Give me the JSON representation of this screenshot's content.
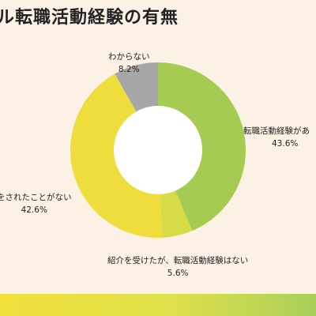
{
  "title": "ル転職活動経験の有無",
  "chart_data": {
    "type": "pie",
    "variant": "donut",
    "slices": [
      {
        "label": "転職活動経験があ",
        "value": 43.6,
        "value_text": "43.6%",
        "color": "#a6cb52"
      },
      {
        "label": "紹介を受けたが、転職活動経験はない",
        "value": 5.6,
        "value_text": "5.6%",
        "color": "#d6dc48"
      },
      {
        "label": "をされたことがない",
        "value": 42.6,
        "value_text": "42.6%",
        "color": "#eedd3d"
      },
      {
        "label": "わからない",
        "value": 8.2,
        "value_text": "8.2%",
        "color": "#a7a7a7"
      }
    ],
    "start_angle_deg": 0,
    "direction": "clockwise"
  },
  "colors": {
    "background": "#fbf1e4",
    "hole": "#ffffff",
    "band_left": "#f2df3b",
    "band_right": "#a9cf5a"
  }
}
